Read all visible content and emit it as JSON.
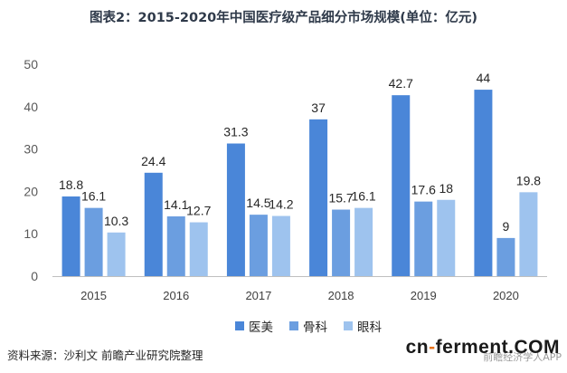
{
  "title": "图表2：2015-2020年中国医疗级产品细分市场规模(单位：亿元)",
  "chart_data": {
    "type": "bar",
    "title": "图表2：2015-2020年中国医疗级产品细分市场规模(单位：亿元)",
    "categories": [
      "2015",
      "2016",
      "2017",
      "2018",
      "2019",
      "2020"
    ],
    "series": [
      {
        "name": "医美",
        "values": [
          18.8,
          24.4,
          31.3,
          37,
          42.7,
          44
        ],
        "color": "#4a86d8"
      },
      {
        "name": "骨科",
        "values": [
          16.1,
          14.1,
          14.5,
          15.7,
          17.6,
          9
        ],
        "color": "#6b9ee0"
      },
      {
        "name": "眼科",
        "values": [
          10.3,
          12.7,
          14.2,
          16.1,
          18,
          19.8
        ],
        "color": "#9ec3ee"
      }
    ],
    "ylim": [
      0,
      50
    ],
    "yticks": [
      0,
      10,
      20,
      30,
      40,
      50
    ],
    "xlabel": "",
    "ylabel": "",
    "legend_position": "bottom",
    "grid": false
  },
  "footer": {
    "source": "资料来源：沙利文 前瞻产业研究院整理",
    "brand_prefix": "cn",
    "brand_dash": "-",
    "brand_suffix": "ferment",
    "brand_tld": ".COM",
    "brand_sub": "前瞻经济学人APP"
  }
}
